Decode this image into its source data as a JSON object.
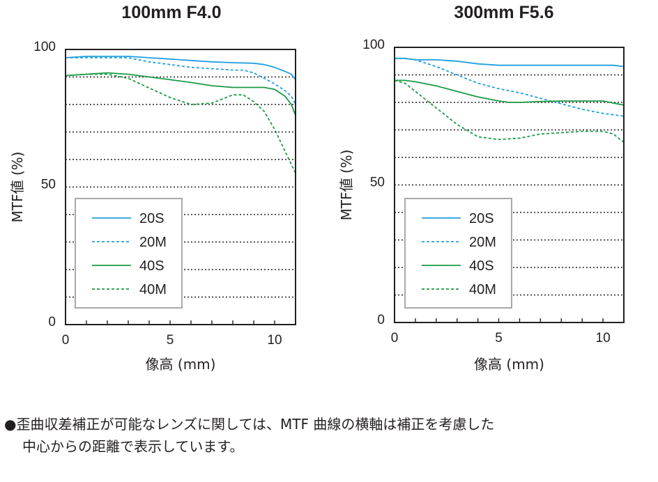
{
  "chart_data": [
    {
      "type": "line",
      "title": "100mm F4.0",
      "xlabel": "像高 (mm)",
      "ylabel": "MTF値 (%)",
      "xlim": [
        0,
        11
      ],
      "ylim": [
        0,
        100
      ],
      "xticks": [
        0,
        5,
        10
      ],
      "yticks": [
        0,
        50,
        100
      ],
      "grid": "dotted horizontal lines every 10%",
      "legend_position": "lower-left",
      "series": [
        {
          "name": "20S",
          "style": "solid",
          "color": "#1fa0de",
          "x": [
            0,
            1,
            2,
            3,
            4,
            5,
            6,
            7,
            8,
            9,
            9.5,
            10,
            10.5,
            10.8,
            11
          ],
          "y": [
            97,
            97.5,
            97.5,
            97.5,
            97,
            96.5,
            96,
            95.5,
            95.2,
            95,
            94.5,
            93.5,
            92,
            91,
            89
          ]
        },
        {
          "name": "20M",
          "style": "dashed",
          "color": "#1fa0de",
          "x": [
            0,
            1,
            2,
            3,
            4,
            5,
            6,
            7,
            8,
            8.5,
            9,
            9.5,
            10,
            10.5,
            10.8,
            11
          ],
          "y": [
            97,
            97,
            97,
            97,
            95.5,
            94.5,
            93.5,
            93,
            92.5,
            92.5,
            91.5,
            89.5,
            87.5,
            85,
            83,
            80
          ]
        },
        {
          "name": "40S",
          "style": "solid",
          "color": "#1a9a45",
          "x": [
            0,
            1,
            2,
            3,
            4,
            5,
            6,
            7,
            8,
            9,
            9.5,
            10,
            10.5,
            10.8,
            11
          ],
          "y": [
            90.5,
            91,
            91.5,
            91,
            90,
            89,
            88,
            86.8,
            86.2,
            86.2,
            86.2,
            85.5,
            83,
            80,
            76
          ]
        },
        {
          "name": "40M",
          "style": "dashed",
          "color": "#1a9a45",
          "x": [
            0,
            1,
            2,
            3,
            4,
            5,
            6,
            7,
            7.5,
            8,
            8.5,
            9,
            9.5,
            10,
            10.5,
            11
          ],
          "y": [
            90.5,
            91,
            91,
            89.5,
            86,
            82.5,
            80,
            80.5,
            82,
            83.5,
            83.5,
            81,
            77.5,
            71,
            63,
            55
          ]
        }
      ]
    },
    {
      "type": "line",
      "title": "300mm F5.6",
      "xlabel": "像高 (mm)",
      "ylabel": "MTF値 (%)",
      "xlim": [
        0,
        11
      ],
      "ylim": [
        0,
        100
      ],
      "xticks": [
        0,
        5,
        10
      ],
      "yticks": [
        0,
        50,
        100
      ],
      "grid": "dotted horizontal lines every 10%",
      "legend_position": "lower-left",
      "series": [
        {
          "name": "20S",
          "style": "solid",
          "color": "#1fa0de",
          "x": [
            0,
            0.5,
            1,
            2,
            3,
            4,
            5,
            6,
            7,
            8,
            9,
            10,
            10.5,
            11
          ],
          "y": [
            96,
            96,
            95.5,
            95.5,
            95,
            94,
            93.5,
            93.5,
            93.5,
            93.5,
            93.5,
            93.5,
            93.5,
            93
          ]
        },
        {
          "name": "20M",
          "style": "dashed",
          "color": "#1fa0de",
          "x": [
            0,
            0.5,
            1,
            2,
            3,
            4,
            5,
            6,
            7,
            8,
            9,
            10,
            11
          ],
          "y": [
            96,
            96,
            95.5,
            93,
            90,
            87,
            85,
            83.5,
            81.5,
            79.5,
            77.5,
            76,
            75
          ]
        },
        {
          "name": "40S",
          "style": "solid",
          "color": "#1a9a45",
          "x": [
            0,
            0.5,
            1,
            2,
            3,
            4,
            5,
            5.5,
            6,
            7,
            8,
            9,
            10,
            11
          ],
          "y": [
            88,
            88,
            87.5,
            86,
            84,
            82,
            80.5,
            80,
            80,
            80.3,
            80.5,
            80.5,
            80.5,
            79
          ]
        },
        {
          "name": "40M",
          "style": "dashed",
          "color": "#1a9a45",
          "x": [
            0,
            0.5,
            1,
            2,
            3,
            4,
            5,
            6,
            7,
            8,
            9,
            10,
            10.5,
            11
          ],
          "y": [
            88,
            87,
            84,
            78,
            72,
            67.5,
            66.5,
            67,
            68.5,
            69,
            69.5,
            69.5,
            68.5,
            65.5
          ]
        }
      ]
    }
  ],
  "note": {
    "bullet": "●",
    "line1": "歪曲収差補正が可能なレンズに関しては、MTF 曲線の横軸は補正を考慮した",
    "line2": "中心からの距離で表示しています。"
  }
}
